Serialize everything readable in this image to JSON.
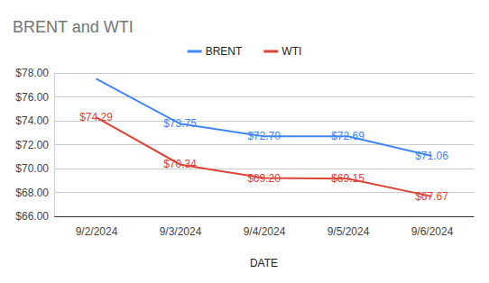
{
  "chart_data": {
    "type": "line",
    "title": "BRENT and WTI",
    "x_label": "DATE",
    "categories": [
      "9/2/2024",
      "9/3/2024",
      "9/4/2024",
      "9/5/2024",
      "9/6/2024"
    ],
    "series": [
      {
        "name": "BRENT",
        "color": "#4285f4",
        "values": [
          77.52,
          73.75,
          72.7,
          72.69,
          71.06
        ],
        "value_labels": [
          null,
          "$73.75",
          "$72.70",
          "$72.69",
          "$71.06"
        ]
      },
      {
        "name": "WTI",
        "color": "#db4437",
        "values": [
          74.29,
          70.34,
          69.2,
          69.15,
          67.67
        ],
        "value_labels": [
          "$74.29",
          "$70.34",
          "$69.20",
          "$69.15",
          "$67.67"
        ]
      }
    ],
    "ylim": [
      66,
      78
    ],
    "yticks": [
      {
        "value": 66,
        "label": "$66.00"
      },
      {
        "value": 68,
        "label": "$68.00"
      },
      {
        "value": 70,
        "label": "$70.00"
      },
      {
        "value": 72,
        "label": "$72.00"
      },
      {
        "value": 74,
        "label": "$74.00"
      },
      {
        "value": 76,
        "label": "$76.00"
      },
      {
        "value": 78,
        "label": "$78.00"
      }
    ],
    "grid": true,
    "legend": "top",
    "data_labels": true
  }
}
